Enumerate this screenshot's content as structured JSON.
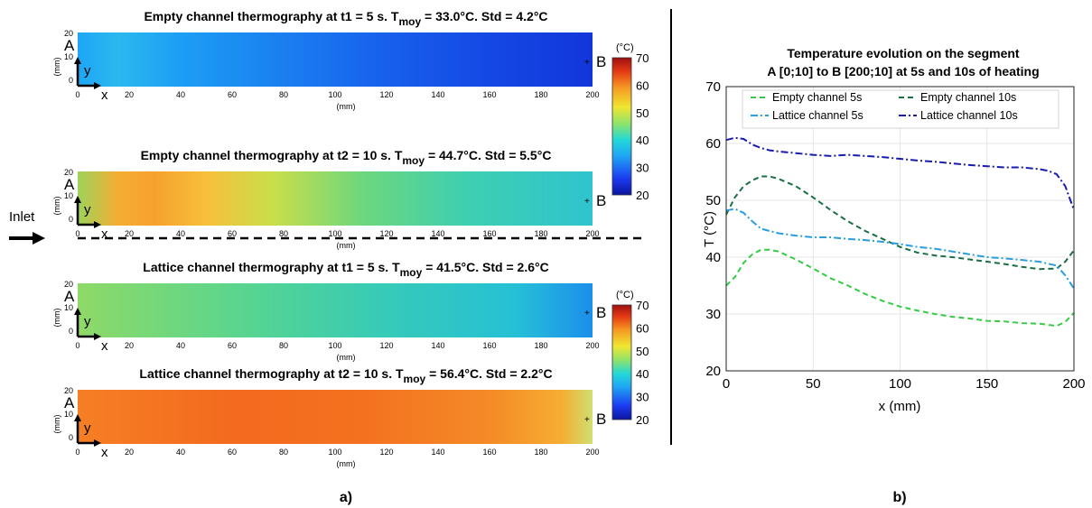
{
  "panel_a": {
    "label": "a)",
    "inlet_label": "Inlet",
    "colorbar": {
      "unit": "(°C)",
      "ticks": [
        "70",
        "60",
        "50",
        "40",
        "30",
        "20"
      ]
    },
    "axis": {
      "x_ticks": [
        "0",
        "20",
        "40",
        "60",
        "80",
        "100",
        "120",
        "140",
        "160",
        "180",
        "200"
      ],
      "y_ticks": [
        "20",
        "10",
        "0"
      ],
      "unit_label": "(mm)",
      "point_a": "A",
      "point_b": "B",
      "arrow_x": "x",
      "arrow_y": "y"
    },
    "maps": [
      {
        "title_pre": "Empty channel thermography at t1 = 5 s. T",
        "title_sub": "moy",
        "title_post": " = 33.0°C. Std = 4.2°C",
        "gradient": [
          [
            "0%",
            "#1ea6f5"
          ],
          [
            "8%",
            "#2ab8ef"
          ],
          [
            "20%",
            "#1c9ef4"
          ],
          [
            "40%",
            "#1a7ff0"
          ],
          [
            "60%",
            "#1760ec"
          ],
          [
            "80%",
            "#1448e4"
          ],
          [
            "100%",
            "#1236da"
          ]
        ]
      },
      {
        "title_pre": "Empty channel thermography at t2 = 10 s. T",
        "title_sub": "moy",
        "title_post": " = 44.7°C. Std = 5.5°C",
        "gradient": [
          [
            "0%",
            "#9ed35a"
          ],
          [
            "8%",
            "#f5ad33"
          ],
          [
            "15%",
            "#f6a12e"
          ],
          [
            "25%",
            "#f7c03a"
          ],
          [
            "38%",
            "#c9de4a"
          ],
          [
            "55%",
            "#6ed77c"
          ],
          [
            "75%",
            "#3fcfb0"
          ],
          [
            "100%",
            "#2fc4cf"
          ]
        ]
      },
      {
        "title_pre": "Lattice channel thermography at t1 = 5 s. T",
        "title_sub": "moy",
        "title_post": " = 41.5°C. Std = 2.6°C",
        "gradient": [
          [
            "0%",
            "#8fd968"
          ],
          [
            "12%",
            "#7ad876"
          ],
          [
            "35%",
            "#55d493"
          ],
          [
            "60%",
            "#36cab8"
          ],
          [
            "85%",
            "#26c0d6"
          ],
          [
            "100%",
            "#1b8fec"
          ]
        ]
      },
      {
        "title_pre": "Lattice channel thermography at t2 = 10 s. T",
        "title_sub": "moy",
        "title_post": " = 56.4°C. Std = 2.2°C",
        "gradient": [
          [
            "0%",
            "#f57f24"
          ],
          [
            "30%",
            "#f46a1f"
          ],
          [
            "55%",
            "#f4711f"
          ],
          [
            "80%",
            "#f58a27"
          ],
          [
            "94%",
            "#f6ad33"
          ],
          [
            "100%",
            "#cfe071"
          ]
        ]
      }
    ]
  },
  "panel_b": {
    "label": "b)"
  },
  "chart_data": {
    "type": "line",
    "title": "Temperature evolution on the segment",
    "subtitle": "A [0;10] to B [200;10] at 5s and 10s of heating",
    "xlabel": "x (mm)",
    "ylabel": "T (°C)",
    "xlim": [
      0,
      200
    ],
    "ylim": [
      20,
      70
    ],
    "xticks": [
      0,
      50,
      100,
      150,
      200
    ],
    "yticks": [
      20,
      30,
      40,
      50,
      60,
      70
    ],
    "grid": true,
    "legend_position": "top",
    "series": [
      {
        "name": "Empty channel 5s",
        "color": "#33cc44",
        "dash": "dashed",
        "x": [
          0,
          5,
          10,
          15,
          20,
          25,
          30,
          40,
          50,
          60,
          70,
          80,
          90,
          100,
          110,
          120,
          130,
          140,
          150,
          160,
          170,
          180,
          190,
          195,
          200
        ],
        "y": [
          35,
          36.5,
          39,
          40.5,
          41.3,
          41.3,
          41,
          39.6,
          38,
          36.3,
          35,
          33.5,
          32.3,
          31.3,
          30.6,
          30,
          29.5,
          29.2,
          28.8,
          28.7,
          28.4,
          28.3,
          27.9,
          28.6,
          30.2
        ]
      },
      {
        "name": "Empty channel 10s",
        "color": "#1a6e45",
        "dash": "dashed",
        "x": [
          0,
          5,
          10,
          15,
          20,
          25,
          30,
          40,
          50,
          60,
          70,
          80,
          90,
          100,
          110,
          120,
          130,
          140,
          150,
          160,
          170,
          180,
          190,
          195,
          200
        ],
        "y": [
          47.5,
          50.5,
          52.5,
          53.5,
          54.2,
          54.2,
          53.8,
          52.5,
          50.5,
          48.3,
          46.3,
          44.6,
          43.2,
          41.8,
          40.8,
          40.3,
          40,
          39.6,
          39.2,
          38.8,
          38.3,
          37.9,
          38,
          39.2,
          41.2
        ]
      },
      {
        "name": "Lattice channel 5s",
        "color": "#2a9de0",
        "dash": "dashdot",
        "x": [
          0,
          5,
          10,
          15,
          20,
          25,
          30,
          40,
          50,
          60,
          70,
          80,
          90,
          100,
          110,
          120,
          130,
          140,
          150,
          160,
          170,
          180,
          190,
          195,
          200
        ],
        "y": [
          48.2,
          48.5,
          47.8,
          46.3,
          45,
          44.6,
          44.2,
          43.8,
          43.5,
          43.5,
          43.2,
          43,
          42.7,
          42.3,
          41.8,
          41.5,
          41,
          40.5,
          40,
          39.8,
          39.5,
          39.2,
          38.5,
          36.8,
          34.5
        ]
      },
      {
        "name": "Lattice channel 10s",
        "color": "#1a1ab0",
        "dash": "dashdot",
        "x": [
          0,
          5,
          10,
          15,
          20,
          25,
          30,
          40,
          50,
          60,
          70,
          80,
          90,
          100,
          110,
          120,
          130,
          140,
          150,
          160,
          170,
          180,
          185,
          190,
          195,
          200
        ],
        "y": [
          60.6,
          61,
          60.8,
          59.8,
          59.2,
          58.8,
          58.6,
          58.3,
          58,
          57.8,
          58,
          57.8,
          57.6,
          57.3,
          57,
          56.8,
          56.5,
          56.2,
          56,
          55.8,
          55.8,
          55.5,
          55.2,
          54.6,
          52.5,
          48.3
        ]
      }
    ]
  }
}
